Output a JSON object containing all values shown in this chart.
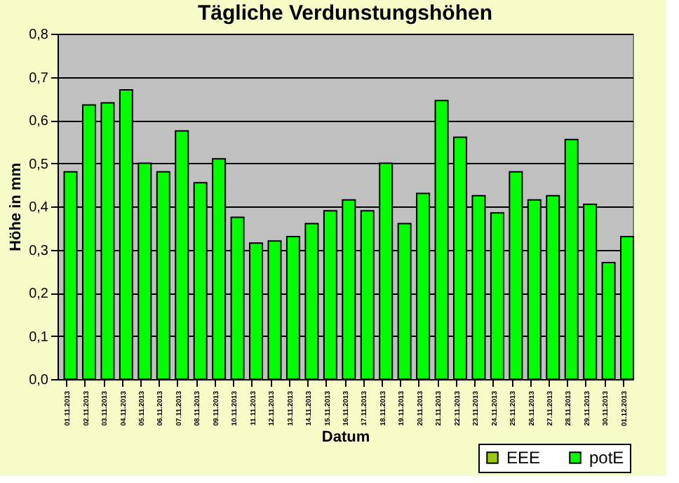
{
  "chart_data": {
    "type": "bar",
    "title": "Tägliche Verdunstungshöhen",
    "xlabel": "Datum",
    "ylabel": "Höhe in mm",
    "categories": [
      "01.11.2013",
      "02.11.2013",
      "03.11.2013",
      "04.11.2013",
      "05.11.2013",
      "06.11.2013",
      "07.11.2013",
      "08.11.2013",
      "09.11.2013",
      "10.11.2013",
      "11.11.2013",
      "12.11.2013",
      "13.11.2013",
      "14.11.2013",
      "15.11.2013",
      "16.11.2013",
      "17.11.2013",
      "18.11.2013",
      "19.11.2013",
      "20.11.2013",
      "21.11.2013",
      "22.11.2013",
      "23.11.2013",
      "24.11.2013",
      "25.11.2013",
      "26.11.2013",
      "27.11.2013",
      "28.11.2013",
      "29.11.2013",
      "30.11.2013",
      "01.12.2013"
    ],
    "series": [
      {
        "name": "EEE",
        "color": "#99cc00",
        "values": [
          null,
          null,
          null,
          null,
          null,
          null,
          null,
          null,
          null,
          null,
          null,
          null,
          null,
          null,
          null,
          null,
          null,
          null,
          null,
          null,
          null,
          null,
          null,
          null,
          null,
          null,
          null,
          null,
          null,
          null,
          null
        ]
      },
      {
        "name": "potE",
        "color": "#00ff00",
        "values": [
          0.48,
          0.635,
          0.64,
          0.67,
          0.5,
          0.48,
          0.575,
          0.455,
          0.51,
          0.375,
          0.315,
          0.32,
          0.33,
          0.36,
          0.39,
          0.415,
          0.39,
          0.5,
          0.36,
          0.43,
          0.645,
          0.56,
          0.425,
          0.385,
          0.48,
          0.415,
          0.425,
          0.555,
          0.405,
          0.27,
          0.33
        ]
      }
    ],
    "ylim": [
      0,
      0.8
    ],
    "yticks": [
      {
        "value": 0,
        "label": "0,0"
      },
      {
        "value": 0.1,
        "label": "0,1"
      },
      {
        "value": 0.2,
        "label": "0,2"
      },
      {
        "value": 0.3,
        "label": "0,3"
      },
      {
        "value": 0.4,
        "label": "0,4"
      },
      {
        "value": 0.5,
        "label": "0,5"
      },
      {
        "value": 0.6,
        "label": "0,6"
      },
      {
        "value": 0.7,
        "label": "0,7"
      },
      {
        "value": 0.8,
        "label": "0,8"
      }
    ],
    "grid": "y",
    "legend": "bottom right"
  }
}
